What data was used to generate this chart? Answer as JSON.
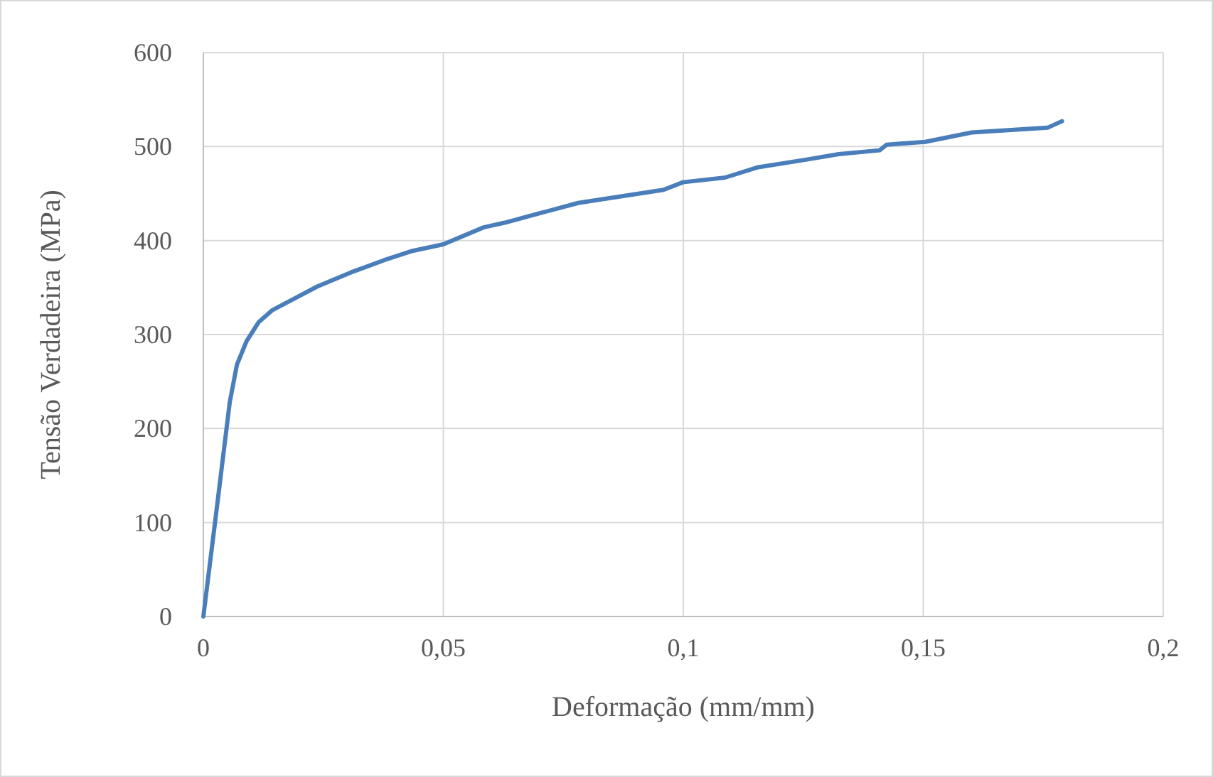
{
  "chart_data": {
    "type": "line",
    "xlabel": "Deformação (mm/mm)",
    "ylabel": "Tensão Verdadeira (MPa)",
    "xlim": [
      0,
      0.2
    ],
    "ylim": [
      0,
      600
    ],
    "xticks": [
      {
        "value": 0,
        "label": "0"
      },
      {
        "value": 0.05,
        "label": "0,05"
      },
      {
        "value": 0.1,
        "label": "0,1"
      },
      {
        "value": 0.15,
        "label": "0,15"
      },
      {
        "value": 0.2,
        "label": "0,2"
      }
    ],
    "yticks": [
      0,
      100,
      200,
      300,
      400,
      500,
      600
    ],
    "grid": true,
    "marker": "none",
    "line_style": "solid",
    "series": [
      {
        "color": "#4a7ebb",
        "x": [
          0,
          0.0026,
          0.0055,
          0.007,
          0.009,
          0.0115,
          0.0144,
          0.0189,
          0.0237,
          0.0307,
          0.0376,
          0.0436,
          0.05,
          0.0584,
          0.0628,
          0.0781,
          0.0959,
          0.0999,
          0.1087,
          0.1156,
          0.1255,
          0.1324,
          0.1409,
          0.1424,
          0.1504,
          0.1601,
          0.1759,
          0.1789
        ],
        "values": [
          0,
          107,
          228,
          268,
          293,
          313,
          326,
          338,
          351,
          366,
          379,
          389,
          396,
          414,
          419,
          440,
          454,
          462,
          467,
          478,
          486,
          492,
          496,
          502,
          505,
          515,
          520,
          527
        ]
      }
    ]
  }
}
